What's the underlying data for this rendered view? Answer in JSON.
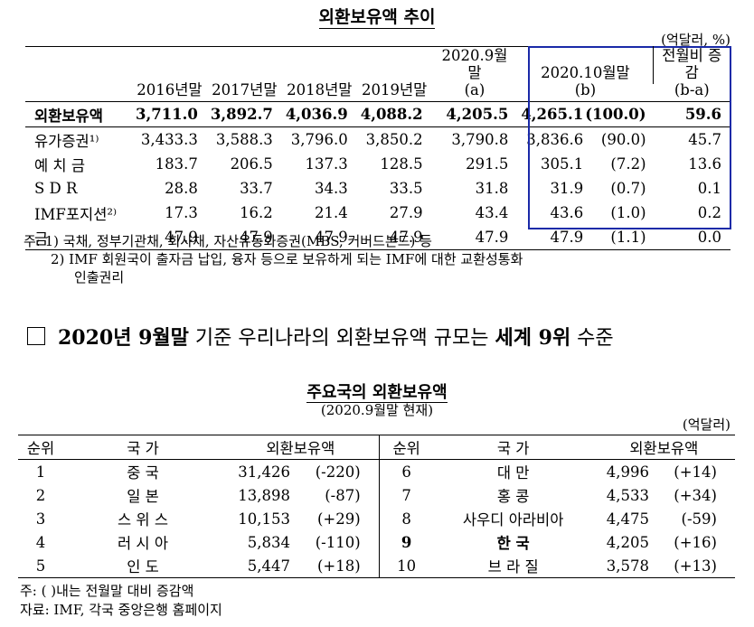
{
  "table1": {
    "title": "외환보유액 추이",
    "unit": "(억달러, %)",
    "headers": [
      "2016년말",
      "2017년말",
      "2018년말",
      "2019년말",
      "2020.9월말\n(a)",
      "2020.10월말\n(b)",
      "전월비 증감\n(b-a)"
    ],
    "rows": [
      {
        "label": "외환보유액",
        "values": [
          "3,711.0",
          "3,892.7",
          "4,036.9",
          "4,088.2",
          "4,205.5",
          "4,265.1",
          "(100.0)",
          "59.6"
        ]
      },
      {
        "label": "유가증권¹⁾",
        "values": [
          "3,433.3",
          "3,588.3",
          "3,796.0",
          "3,850.2",
          "3,790.8",
          "3,836.6",
          "(90.0)",
          "45.7"
        ]
      },
      {
        "label": "예 치 금",
        "values": [
          "183.7",
          "206.5",
          "137.3",
          "128.5",
          "291.5",
          "305.1",
          "(7.2)",
          "13.6"
        ]
      },
      {
        "label": "S D R",
        "values": [
          "28.8",
          "33.7",
          "34.3",
          "33.5",
          "31.8",
          "31.9",
          "(0.7)",
          "0.1"
        ]
      },
      {
        "label": "IMF포지션²⁾",
        "values": [
          "17.3",
          "16.2",
          "21.4",
          "27.9",
          "43.4",
          "43.6",
          "(1.0)",
          "0.2"
        ]
      },
      {
        "label": "금",
        "values": [
          "47.9",
          "47.9",
          "47.9",
          "47.9",
          "47.9",
          "47.9",
          "(1.1)",
          "0.0"
        ]
      }
    ],
    "notes": [
      "주: 1) 국채, 정부기관채, 회사채, 자산유동화증권(MBS, 커버드본드) 등",
      "2) IMF 회원국이 출자금 납입, 융자 등으로 보유하게 되는 IMF에 대한 교환성통화",
      "인출권리"
    ]
  },
  "headline": {
    "part1": "2020년 9월말",
    "part2": " 기준 우리나라의 외환보유액 규모는 ",
    "part3": "세계 9위",
    "part4": " 수준"
  },
  "table2": {
    "title": "주요국의 외환보유액",
    "subtitle": "(2020.9월말 현재)",
    "unit": "(억달러)",
    "headers": [
      "순위",
      "국 가",
      "외환보유액",
      "순위",
      "국 가",
      "외환보유액"
    ],
    "rows": [
      {
        "left": {
          "rank": "1",
          "country": "중 국",
          "amount": "31,426",
          "change": "(-220)"
        },
        "right": {
          "rank": "6",
          "country": "대 만",
          "amount": "4,996",
          "change": "(+14)"
        }
      },
      {
        "left": {
          "rank": "2",
          "country": "일 본",
          "amount": "13,898",
          "change": "(-87)"
        },
        "right": {
          "rank": "7",
          "country": "홍 콩",
          "amount": "4,533",
          "change": "(+34)"
        }
      },
      {
        "left": {
          "rank": "3",
          "country": "스 위 스",
          "amount": "10,153",
          "change": "(+29)"
        },
        "right": {
          "rank": "8",
          "country": "사우디 아라비아",
          "amount": "4,475",
          "change": "(-59)"
        }
      },
      {
        "left": {
          "rank": "4",
          "country": "러 시 아",
          "amount": "5,834",
          "change": "(-110)"
        },
        "right": {
          "rank": "9",
          "country": "한 국",
          "amount": "4,205",
          "change": "(+16)"
        }
      },
      {
        "left": {
          "rank": "5",
          "country": "인 도",
          "amount": "5,447",
          "change": "(+18)"
        },
        "right": {
          "rank": "10",
          "country": "브 라 질",
          "amount": "3,578",
          "change": "(+13)"
        }
      }
    ],
    "notes": [
      "주: ( )내는 전월말 대비 증감액",
      "자료: IMF, 각국 중앙은행 홈페이지"
    ]
  },
  "colors": {
    "highlight_box": "#1a2aa8"
  }
}
